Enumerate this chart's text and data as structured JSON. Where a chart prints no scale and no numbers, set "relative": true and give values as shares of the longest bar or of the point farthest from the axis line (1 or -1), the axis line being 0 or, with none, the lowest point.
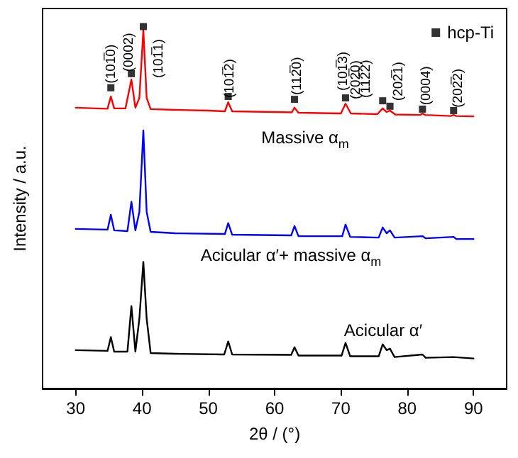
{
  "chart_data": {
    "type": "line",
    "relative": true,
    "xlabel": "2θ / (°)",
    "ylabel": "Intensity / a.u.",
    "xlim": [
      25,
      95
    ],
    "xticks": [
      30,
      40,
      50,
      60,
      70,
      80,
      90
    ],
    "marker": "none",
    "legend": "top right",
    "series": [
      {
        "color": "#ff0000",
        "x": [
          30,
          33,
          34.8,
          35.3,
          35.8,
          37.5,
          38.4,
          39.0,
          39.6,
          40.2,
          40.7,
          41.3,
          45,
          50,
          52.5,
          53,
          53.6,
          60,
          62.6,
          63,
          63.6,
          70,
          70.7,
          71.5,
          75.5,
          76.3,
          76.9,
          77.4,
          78.2,
          82,
          82.3,
          82.7,
          86.6,
          87,
          87.4,
          90
        ],
        "values": [
          0.776,
          0.774,
          0.773,
          0.807,
          0.774,
          0.774,
          0.854,
          0.776,
          0.803,
          0.99,
          0.803,
          0.772,
          0.77,
          0.768,
          0.766,
          0.791,
          0.766,
          0.764,
          0.763,
          0.776,
          0.762,
          0.76,
          0.787,
          0.76,
          0.758,
          0.774,
          0.764,
          0.768,
          0.757,
          0.756,
          0.76,
          0.756,
          0.753,
          0.756,
          0.753,
          0.752
        ]
      },
      {
        "color": "#0000ff",
        "x": [
          30,
          34.8,
          35.3,
          35.8,
          37.8,
          38.4,
          39.0,
          39.6,
          40.2,
          40.7,
          41.3,
          45,
          52.5,
          53,
          53.6,
          62.5,
          63,
          63.6,
          70.2,
          70.7,
          71.4,
          75.7,
          76.3,
          76.9,
          77.4,
          78.1,
          82.3,
          82.8,
          87,
          87.4,
          90
        ],
        "values": [
          0.441,
          0.439,
          0.48,
          0.437,
          0.435,
          0.516,
          0.437,
          0.488,
          0.713,
          0.488,
          0.433,
          0.429,
          0.427,
          0.457,
          0.425,
          0.423,
          0.449,
          0.421,
          0.421,
          0.453,
          0.419,
          0.417,
          0.445,
          0.429,
          0.437,
          0.417,
          0.421,
          0.415,
          0.419,
          0.413,
          0.413
        ]
      },
      {
        "color": "#000000",
        "x": [
          30,
          34.8,
          35.3,
          35.8,
          37.8,
          38.4,
          39.0,
          39.6,
          40.2,
          40.7,
          41.3,
          45,
          52.4,
          53,
          53.6,
          62.5,
          63,
          63.6,
          70.1,
          70.7,
          71.4,
          75.7,
          76.3,
          76.9,
          77.4,
          78.1,
          82.3,
          82.8,
          87,
          90
        ],
        "values": [
          0.106,
          0.104,
          0.142,
          0.102,
          0.102,
          0.228,
          0.102,
          0.193,
          0.35,
          0.193,
          0.098,
          0.096,
          0.094,
          0.13,
          0.094,
          0.093,
          0.114,
          0.091,
          0.091,
          0.126,
          0.089,
          0.089,
          0.122,
          0.106,
          0.11,
          0.087,
          0.094,
          0.085,
          0.087,
          0.083
        ]
      },
      {
        "type": "scatter",
        "name": "hcp-Ti",
        "color": "#000000",
        "marker": "square",
        "x": [
          35.3,
          38.4,
          40.2,
          53,
          63,
          70.7,
          76.3,
          77.4,
          82.3,
          87
        ],
        "values": [
          0.831,
          0.87,
          1.0,
          0.807,
          0.799,
          0.803,
          0.795,
          0.78,
          0.772,
          0.768
        ]
      }
    ],
    "annotations": [
      {
        "text": "(101̅0)",
        "x": 35.4,
        "y": 0.843
      },
      {
        "text": "(0002)",
        "x": 38.1,
        "y": 0.875
      },
      "(101̅1)",
      {
        "text": "(101̅2)",
        "x": 53.3,
        "y": 0.803
      },
      {
        "text": "(112̅0)",
        "x": 63.4,
        "y": 0.811
      },
      {
        "text": "(101̅3)",
        "x": 70.4,
        "y": 0.823
      },
      "(202̅0)",
      "(112̅2)",
      {
        "text": "(202̅1)",
        "x": 78.7,
        "y": 0.795
      },
      {
        "text": "(0004)",
        "x": 82.9,
        "y": 0.783
      },
      {
        "text": "(202̅2)",
        "x": 87.7,
        "y": 0.776
      },
      "Massive α$_{m}$",
      "Acicular α′+ massive α$_{m}$",
      "Acicular α′"
    ]
  }
}
